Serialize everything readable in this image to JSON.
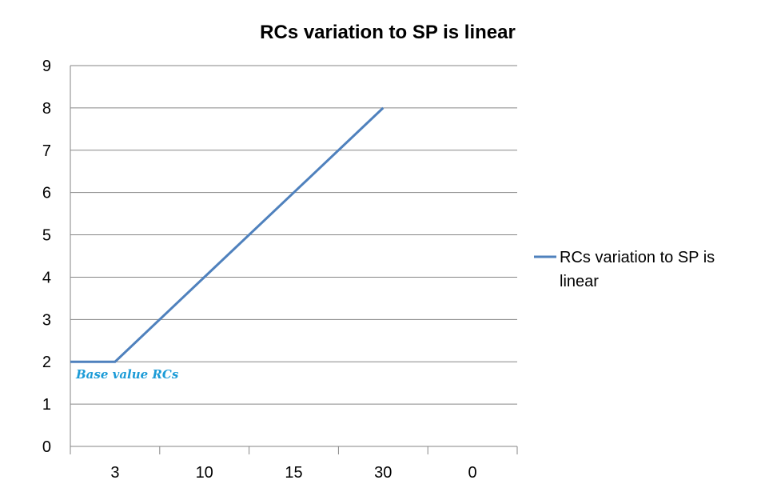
{
  "chart_data": {
    "type": "line",
    "title": "RCs variation to SP is linear",
    "categories": [
      "3",
      "10",
      "15",
      "30",
      "0"
    ],
    "series": [
      {
        "name": "RCs variation to SP is linear",
        "legend_lines": [
          "RCs variation to SP is",
          "linear"
        ],
        "points": [
          [
            0,
            2
          ],
          [
            0.5,
            2
          ],
          [
            1.5,
            4
          ],
          [
            3.5,
            8
          ]
        ],
        "color": "#4F81BD"
      }
    ],
    "ylim": [
      0,
      9
    ],
    "yticks": [
      0,
      1,
      2,
      3,
      4,
      5,
      6,
      7,
      8,
      9
    ],
    "grid": true,
    "legend": "right",
    "annotation": {
      "text": "Base value RCs",
      "color": "#1B9BD7"
    }
  }
}
